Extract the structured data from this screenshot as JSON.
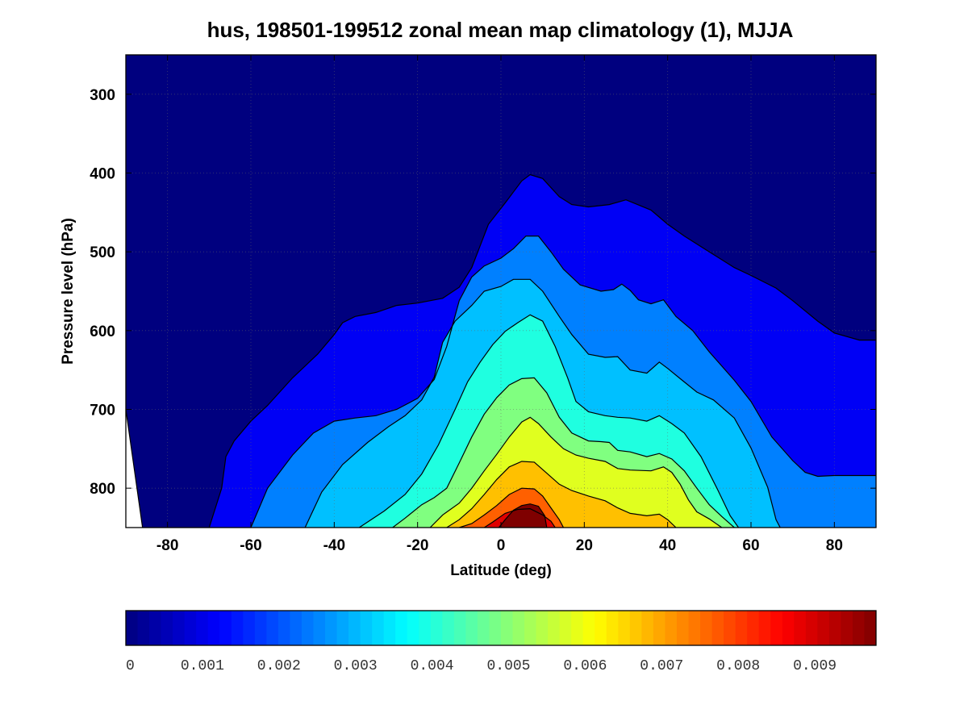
{
  "chart_data": {
    "type": "heatmap",
    "title": "hus, 198501-199512 zonal mean map climatology (1), MJJA",
    "xlabel": "Latitude (deg)",
    "ylabel": "Pressure level (hPa)",
    "xlim": [
      -90,
      90
    ],
    "ylim": [
      850,
      250
    ],
    "y_inverted": true,
    "x_ticks": [
      -80,
      -60,
      -40,
      -20,
      0,
      20,
      40,
      60,
      80
    ],
    "y_ticks": [
      300,
      400,
      500,
      600,
      700,
      800
    ],
    "grid": "dotted",
    "colormap": "jet",
    "colorbar": {
      "orientation": "horizontal",
      "position": "bottom",
      "range": [
        0,
        0.0098
      ],
      "ticks": [
        "0",
        "0.001",
        "0.002",
        "0.003",
        "0.004",
        "0.005",
        "0.006",
        "0.007",
        "0.008",
        "0.009"
      ]
    },
    "contour_levels": [
      0,
      0.001,
      0.002,
      0.003,
      0.004,
      0.005,
      0.006,
      0.007,
      0.008,
      0.009
    ],
    "contours": [
      {
        "level": 0,
        "color": "#00007f",
        "points": [
          [
            -90,
            700
          ],
          [
            -86,
            850
          ]
        ]
      },
      {
        "level": 0.001,
        "color": "#0000f5",
        "points": [
          [
            -70,
            850
          ],
          [
            -67,
            800
          ],
          [
            -66,
            760
          ],
          [
            -64,
            740
          ],
          [
            -60,
            715
          ],
          [
            -56,
            695
          ],
          [
            -50,
            660
          ],
          [
            -44,
            630
          ],
          [
            -40,
            605
          ],
          [
            -38,
            590
          ],
          [
            -35,
            582
          ],
          [
            -30,
            577
          ],
          [
            -25,
            568
          ],
          [
            -20,
            565
          ],
          [
            -14,
            559
          ],
          [
            -10,
            545
          ],
          [
            -7,
            520
          ],
          [
            -3,
            465
          ],
          [
            1,
            438
          ],
          [
            5,
            410
          ],
          [
            7,
            402
          ],
          [
            10,
            407
          ],
          [
            14,
            430
          ],
          [
            17,
            440
          ],
          [
            21,
            443
          ],
          [
            26,
            440
          ],
          [
            30,
            434
          ],
          [
            36,
            447
          ],
          [
            40,
            465
          ],
          [
            44,
            480
          ],
          [
            50,
            500
          ],
          [
            56,
            520
          ],
          [
            60,
            530
          ],
          [
            66,
            546
          ],
          [
            70,
            562
          ],
          [
            76,
            588
          ],
          [
            80,
            603
          ],
          [
            86,
            612
          ],
          [
            90,
            612
          ]
        ]
      },
      {
        "level": 0.002,
        "color": "#0080ff",
        "points": [
          [
            -60,
            850
          ],
          [
            -56,
            800
          ],
          [
            -50,
            758
          ],
          [
            -45,
            730
          ],
          [
            -40,
            715
          ],
          [
            -35,
            711
          ],
          [
            -30,
            708
          ],
          [
            -25,
            700
          ],
          [
            -20,
            686
          ],
          [
            -16,
            662
          ],
          [
            -13,
            620
          ],
          [
            -10,
            562
          ],
          [
            -7,
            532
          ],
          [
            -4,
            518
          ],
          [
            0,
            508
          ],
          [
            3,
            496
          ],
          [
            6,
            480
          ],
          [
            9,
            480
          ],
          [
            12,
            500
          ],
          [
            15,
            522
          ],
          [
            19,
            542
          ],
          [
            24,
            550
          ],
          [
            27,
            548
          ],
          [
            29,
            541
          ],
          [
            31,
            549
          ],
          [
            33,
            561
          ],
          [
            36,
            566
          ],
          [
            39,
            561
          ],
          [
            42,
            582
          ],
          [
            46,
            600
          ],
          [
            50,
            627
          ],
          [
            56,
            663
          ],
          [
            60,
            690
          ],
          [
            65,
            735
          ],
          [
            70,
            765
          ],
          [
            73,
            780
          ],
          [
            76,
            785
          ],
          [
            80,
            784
          ],
          [
            86,
            784
          ],
          [
            90,
            784
          ]
        ]
      },
      {
        "level": 0.003,
        "color": "#00c0ff",
        "points": [
          [
            -47,
            850
          ],
          [
            -43,
            805
          ],
          [
            -38,
            770
          ],
          [
            -32,
            742
          ],
          [
            -27,
            722
          ],
          [
            -23,
            708
          ],
          [
            -19,
            688
          ],
          [
            -16,
            659
          ],
          [
            -14,
            615
          ],
          [
            -11,
            588
          ],
          [
            -7,
            568
          ],
          [
            -4,
            550
          ],
          [
            0,
            544
          ],
          [
            3,
            535
          ],
          [
            7,
            535
          ],
          [
            10,
            550
          ],
          [
            14,
            582
          ],
          [
            17,
            605
          ],
          [
            21,
            630
          ],
          [
            25,
            634
          ],
          [
            28,
            633
          ],
          [
            31,
            650
          ],
          [
            35,
            654
          ],
          [
            38,
            640
          ],
          [
            40,
            648
          ],
          [
            43,
            661
          ],
          [
            47,
            678
          ],
          [
            51,
            688
          ],
          [
            56,
            711
          ],
          [
            60,
            749
          ],
          [
            64,
            799
          ],
          [
            66,
            840
          ],
          [
            67,
            850
          ]
        ]
      },
      {
        "level": 0.004,
        "color": "#1fffe0",
        "points": [
          [
            -34,
            850
          ],
          [
            -28,
            829
          ],
          [
            -23,
            808
          ],
          [
            -19,
            782
          ],
          [
            -15,
            745
          ],
          [
            -11,
            700
          ],
          [
            -8,
            665
          ],
          [
            -5,
            640
          ],
          [
            -2,
            618
          ],
          [
            1,
            601
          ],
          [
            4,
            590
          ],
          [
            7,
            580
          ],
          [
            10,
            588
          ],
          [
            13,
            620
          ],
          [
            16,
            660
          ],
          [
            18,
            690
          ],
          [
            21,
            703
          ],
          [
            25,
            708
          ],
          [
            28,
            710
          ],
          [
            31,
            711
          ],
          [
            35,
            715
          ],
          [
            38,
            708
          ],
          [
            41,
            718
          ],
          [
            44,
            730
          ],
          [
            48,
            760
          ],
          [
            52,
            802
          ],
          [
            55,
            835
          ],
          [
            57,
            850
          ]
        ]
      },
      {
        "level": 0.005,
        "color": "#80ff80",
        "points": [
          [
            -26,
            850
          ],
          [
            -23,
            838
          ],
          [
            -19,
            821
          ],
          [
            -16,
            812
          ],
          [
            -13,
            800
          ],
          [
            -10,
            768
          ],
          [
            -7,
            735
          ],
          [
            -4,
            706
          ],
          [
            -1,
            685
          ],
          [
            2,
            669
          ],
          [
            5,
            661
          ],
          [
            8,
            660
          ],
          [
            11,
            679
          ],
          [
            14,
            710
          ],
          [
            17,
            730
          ],
          [
            21,
            740
          ],
          [
            24,
            741
          ],
          [
            26,
            742
          ],
          [
            28,
            752
          ],
          [
            31,
            754
          ],
          [
            35,
            760
          ],
          [
            38,
            756
          ],
          [
            41,
            763
          ],
          [
            44,
            778
          ],
          [
            47,
            800
          ],
          [
            50,
            821
          ],
          [
            53,
            836
          ],
          [
            56,
            850
          ]
        ]
      },
      {
        "level": 0.006,
        "color": "#e0ff1f",
        "points": [
          [
            -17,
            850
          ],
          [
            -14,
            834
          ],
          [
            -10,
            819
          ],
          [
            -7,
            800
          ],
          [
            -4,
            778
          ],
          [
            -1,
            757
          ],
          [
            2,
            735
          ],
          [
            5,
            716
          ],
          [
            7,
            710
          ],
          [
            9,
            718
          ],
          [
            12,
            735
          ],
          [
            15,
            750
          ],
          [
            18,
            758
          ],
          [
            21,
            762
          ],
          [
            25,
            766
          ],
          [
            28,
            775
          ],
          [
            31,
            777
          ],
          [
            36,
            778
          ],
          [
            39,
            773
          ],
          [
            41,
            780
          ],
          [
            43,
            795
          ],
          [
            45,
            815
          ],
          [
            47,
            830
          ],
          [
            50,
            839
          ],
          [
            53,
            850
          ]
        ]
      },
      {
        "level": 0.007,
        "color": "#ffc000",
        "points": [
          [
            -13,
            850
          ],
          [
            -10,
            840
          ],
          [
            -7,
            826
          ],
          [
            -4,
            808
          ],
          [
            -1,
            789
          ],
          [
            2,
            773
          ],
          [
            5,
            766
          ],
          [
            8,
            767
          ],
          [
            11,
            781
          ],
          [
            14,
            795
          ],
          [
            17,
            803
          ],
          [
            21,
            810
          ],
          [
            25,
            816
          ],
          [
            28,
            825
          ],
          [
            31,
            832
          ],
          [
            35,
            835
          ],
          [
            38,
            833
          ],
          [
            40,
            840
          ],
          [
            42,
            850
          ]
        ]
      },
      {
        "level": 0.008,
        "color": "#ff6000",
        "points": [
          [
            -10,
            850
          ],
          [
            -7,
            845
          ],
          [
            -4,
            834
          ],
          [
            -1,
            822
          ],
          [
            2,
            808
          ],
          [
            5,
            800
          ],
          [
            8,
            801
          ],
          [
            10,
            810
          ],
          [
            12,
            825
          ],
          [
            14,
            840
          ],
          [
            15,
            850
          ]
        ]
      },
      {
        "level": 0.009,
        "color": "#e00000",
        "points": [
          [
            -4,
            850
          ],
          [
            -2,
            843
          ],
          [
            1,
            832
          ],
          [
            4,
            827
          ],
          [
            7,
            826
          ],
          [
            10,
            834
          ],
          [
            12,
            842
          ],
          [
            13,
            850
          ]
        ]
      }
    ],
    "bands": [
      {
        "level": 0.0095,
        "color": "#7f0000",
        "points": [
          [
            -0.5,
            850
          ],
          [
            1,
            840
          ],
          [
            3,
            828
          ],
          [
            5,
            822
          ],
          [
            7,
            820
          ],
          [
            9,
            823
          ],
          [
            10.5,
            835
          ],
          [
            11,
            850
          ]
        ]
      }
    ]
  }
}
